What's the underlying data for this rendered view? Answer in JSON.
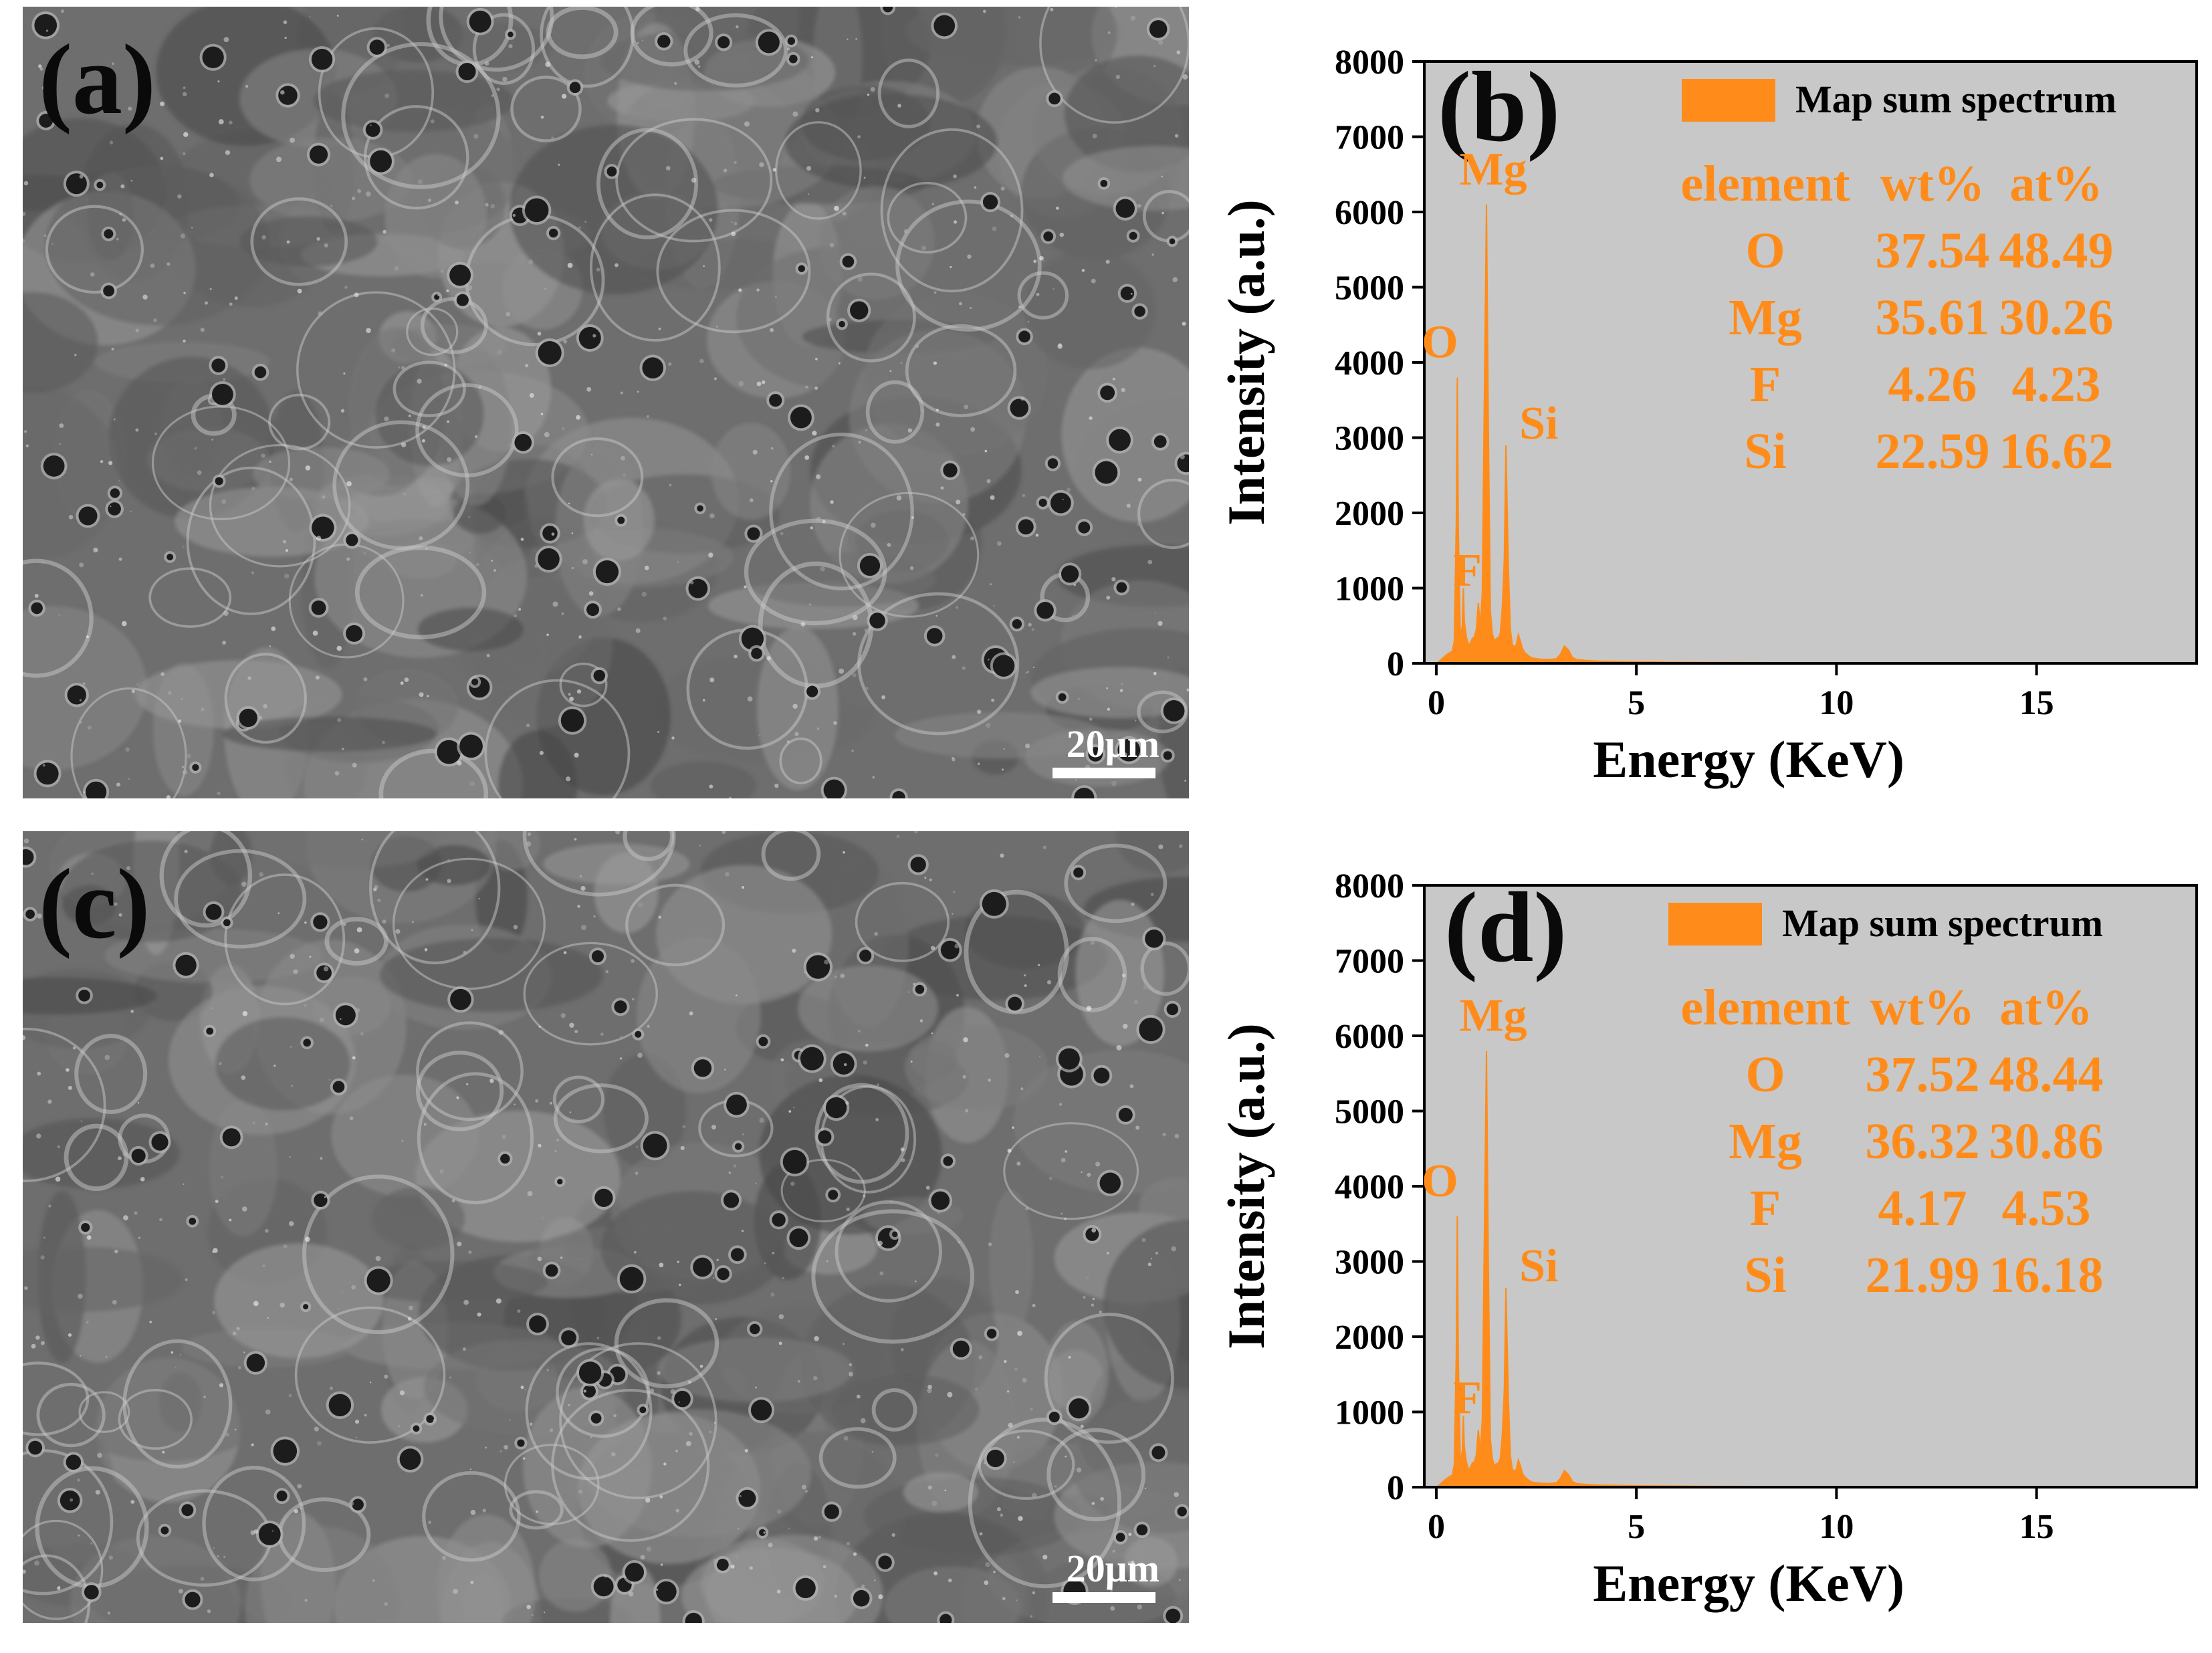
{
  "panels": {
    "a": {
      "label": "(a)",
      "scale_bar": "20μm"
    },
    "c": {
      "label": "(c)",
      "scale_bar": "20μm"
    }
  },
  "chart_data": [
    {
      "type": "area",
      "panel_label": "(b)",
      "xlabel": "Energy (KeV)",
      "ylabel": "Intensity (a.u.)",
      "xlim": [
        -0.3,
        19
      ],
      "ylim": [
        0,
        8000
      ],
      "xticks": [
        0,
        5,
        10,
        15
      ],
      "yticks": [
        0,
        1000,
        2000,
        3000,
        4000,
        5000,
        6000,
        7000,
        8000
      ],
      "legend": {
        "label": "Map sum spectrum",
        "position": "top-right"
      },
      "series": [
        {
          "name": "Map sum spectrum",
          "color": "#FF8C1A",
          "x": [
            0,
            0.1,
            0.2,
            0.3,
            0.4,
            0.45,
            0.5,
            0.525,
            0.55,
            0.6,
            0.65,
            0.677,
            0.7,
            0.75,
            0.8,
            0.85,
            0.9,
            0.95,
            1.0,
            1.05,
            1.1,
            1.15,
            1.2,
            1.254,
            1.3,
            1.35,
            1.4,
            1.45,
            1.5,
            1.55,
            1.6,
            1.65,
            1.7,
            1.74,
            1.8,
            1.85,
            1.9,
            1.95,
            2.0,
            2.05,
            2.1,
            2.15,
            2.2,
            2.3,
            2.4,
            2.6,
            2.8,
            3.0,
            3.1,
            3.2,
            3.3,
            3.4,
            3.5,
            3.7,
            4.0,
            5.0,
            6.0,
            7.0,
            8.0,
            10.0,
            12.0,
            15.0,
            19.0
          ],
          "y": [
            0,
            40,
            90,
            130,
            160,
            300,
            1900,
            3800,
            1800,
            350,
            500,
            1000,
            560,
            350,
            250,
            270,
            330,
            350,
            450,
            800,
            500,
            950,
            3500,
            6100,
            3200,
            700,
            400,
            300,
            330,
            340,
            400,
            750,
            1400,
            2900,
            1300,
            450,
            250,
            220,
            250,
            380,
            300,
            200,
            150,
            100,
            70,
            55,
            50,
            60,
            120,
            230,
            180,
            80,
            50,
            40,
            30,
            20,
            15,
            12,
            10,
            8,
            6,
            5,
            4
          ]
        }
      ],
      "peak_labels": [
        {
          "text": "O",
          "x": 0.525,
          "y": 3800
        },
        {
          "text": "Mg",
          "x": 1.254,
          "y": 6100
        },
        {
          "text": "Si",
          "x": 1.74,
          "y": 2900
        },
        {
          "text": "F",
          "x": 0.677,
          "y": 1000
        }
      ],
      "table": {
        "headers": [
          "element",
          "wt%",
          "at%"
        ],
        "rows": [
          [
            "O",
            "37.54",
            "48.49"
          ],
          [
            "Mg",
            "35.61",
            "30.26"
          ],
          [
            "F",
            "4.26",
            "4.23"
          ],
          [
            "Si",
            "22.59",
            "16.62"
          ]
        ]
      }
    },
    {
      "type": "area",
      "panel_label": "(d)",
      "xlabel": "Energy (KeV)",
      "ylabel": "Intensity (a.u.)",
      "xlim": [
        -0.3,
        19
      ],
      "ylim": [
        0,
        8000
      ],
      "xticks": [
        0,
        5,
        10,
        15
      ],
      "yticks": [
        0,
        1000,
        2000,
        3000,
        4000,
        5000,
        6000,
        7000,
        8000
      ],
      "legend": {
        "label": "Map sum spectrum",
        "position": "top-right"
      },
      "series": [
        {
          "name": "Map sum spectrum",
          "color": "#FF8C1A",
          "x": [
            0,
            0.1,
            0.2,
            0.3,
            0.4,
            0.45,
            0.5,
            0.525,
            0.55,
            0.6,
            0.65,
            0.677,
            0.7,
            0.75,
            0.8,
            0.85,
            0.9,
            0.95,
            1.0,
            1.05,
            1.1,
            1.15,
            1.2,
            1.254,
            1.3,
            1.35,
            1.4,
            1.45,
            1.5,
            1.55,
            1.6,
            1.65,
            1.7,
            1.74,
            1.8,
            1.85,
            1.9,
            1.95,
            2.0,
            2.05,
            2.1,
            2.15,
            2.2,
            2.3,
            2.4,
            2.6,
            2.8,
            3.0,
            3.1,
            3.2,
            3.3,
            3.4,
            3.5,
            3.7,
            4.0,
            5.0,
            6.0,
            7.0,
            8.0,
            10.0,
            12.0,
            15.0,
            19.0
          ],
          "y": [
            0,
            40,
            90,
            130,
            160,
            300,
            1800,
            3600,
            1700,
            340,
            480,
            950,
            540,
            340,
            240,
            260,
            320,
            340,
            430,
            760,
            480,
            900,
            3300,
            5800,
            3000,
            650,
            380,
            290,
            310,
            320,
            380,
            700,
            1300,
            2650,
            1200,
            420,
            240,
            210,
            240,
            360,
            290,
            190,
            140,
            95,
            65,
            52,
            48,
            58,
            115,
            220,
            170,
            75,
            48,
            38,
            28,
            18,
            14,
            11,
            9,
            7,
            5,
            4,
            3
          ]
        }
      ],
      "peak_labels": [
        {
          "text": "O",
          "x": 0.525,
          "y": 3600
        },
        {
          "text": "Mg",
          "x": 1.254,
          "y": 5800
        },
        {
          "text": "Si",
          "x": 1.74,
          "y": 2650
        },
        {
          "text": "F",
          "x": 0.677,
          "y": 950
        }
      ],
      "table": {
        "headers": [
          "element",
          "wt%",
          "at%"
        ],
        "rows": [
          [
            "O",
            "37.52",
            "48.44"
          ],
          [
            "Mg",
            "36.32",
            "30.86"
          ],
          [
            "F",
            "4.17",
            "4.53"
          ],
          [
            "Si",
            "21.99",
            "16.18"
          ]
        ]
      }
    }
  ]
}
